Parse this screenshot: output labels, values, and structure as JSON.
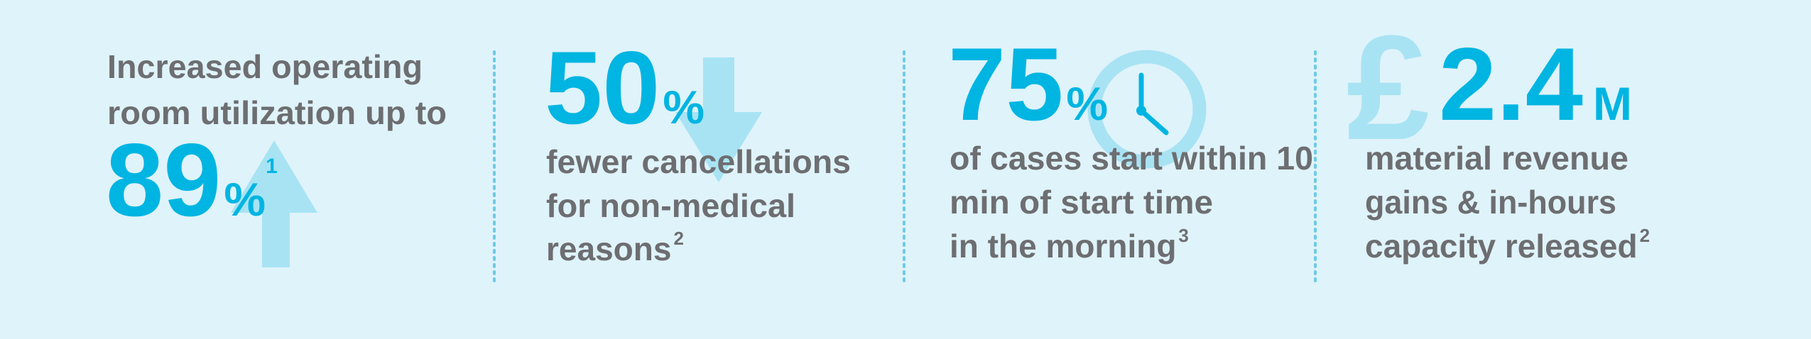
{
  "stats": [
    {
      "lines": [
        "Increased operating",
        "room utilization up to"
      ],
      "number": "89",
      "unit": "%",
      "footnote": "1"
    },
    {
      "number": "50",
      "unit": "%",
      "lines": [
        "fewer cancellations",
        "for non-medical",
        "reasons"
      ],
      "footnote": "2"
    },
    {
      "number": "75",
      "unit": "%",
      "lines": [
        "of cases start within 10",
        "min of start time",
        "in the morning"
      ],
      "footnote": "3"
    },
    {
      "currency": "£",
      "number": "2.4",
      "unit": "M",
      "lines": [
        "material revenue",
        "gains & in-hours",
        "capacity released"
      ],
      "footnote": "2"
    }
  ]
}
